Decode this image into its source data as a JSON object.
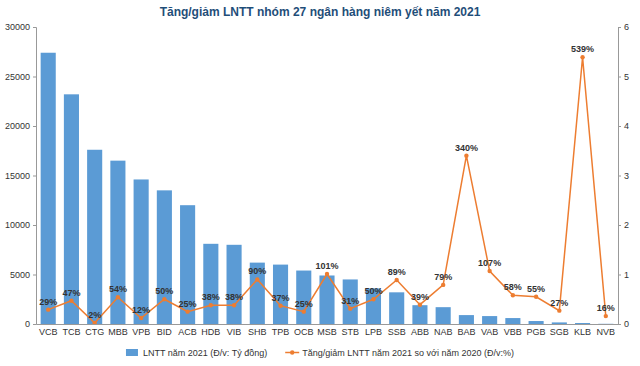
{
  "chart_data": {
    "type": "bar",
    "title": "Tăng/giảm LNTT nhóm 27 ngân hàng niêm yết năm 2021",
    "categories": [
      "VCB",
      "TCB",
      "CTG",
      "MBB",
      "VPB",
      "BID",
      "ACB",
      "HDB",
      "VIB",
      "SHB",
      "TPB",
      "OCB",
      "MSB",
      "STB",
      "LPB",
      "SSB",
      "ABB",
      "NAB",
      "BAB",
      "VAB",
      "VBB",
      "PGB",
      "SGB",
      "KLB",
      "NVB"
    ],
    "series": [
      {
        "name": "LNTT năm 2021 (Đ/v: Tỷ đồng)",
        "type": "bar",
        "color": "#5b9bd5",
        "values": [
          27400,
          23200,
          17600,
          16500,
          14600,
          13500,
          12000,
          8100,
          8000,
          6200,
          6000,
          5400,
          4900,
          4500,
          3600,
          3200,
          1900,
          1700,
          900,
          800,
          600,
          300,
          160,
          100,
          20
        ]
      },
      {
        "name": "Tăng/giảm LNTT năm 2021 so với năm 2020 (Đ/v:%)",
        "type": "line",
        "axis": "y2",
        "color": "#ed7d31",
        "marker": "circle",
        "values": [
          0.29,
          0.47,
          0.02,
          0.54,
          0.12,
          0.5,
          0.25,
          0.38,
          0.38,
          0.9,
          0.37,
          0.25,
          1.01,
          0.31,
          0.5,
          0.89,
          0.39,
          0.79,
          3.4,
          1.07,
          0.58,
          0.55,
          0.27,
          5.39,
          0.16
        ],
        "value_labels": [
          "29%",
          "47%",
          "2%",
          "54%",
          "12%",
          "50%",
          "25%",
          "38%",
          "38%",
          "90%",
          "37%",
          "25%",
          "101%",
          "31%",
          "50%",
          "89%",
          "39%",
          "79%",
          "340%",
          "107%",
          "58%",
          "55%",
          "27%",
          "539%",
          "16%"
        ]
      }
    ],
    "ylim": [
      0,
      30000
    ],
    "yticks": [
      0,
      5000,
      10000,
      15000,
      20000,
      25000,
      30000
    ],
    "y2lim": [
      0,
      6
    ],
    "y2ticks": [
      0,
      1,
      2,
      3,
      4,
      5,
      6
    ],
    "grid": false,
    "legend": "bottom",
    "data_labels": true
  }
}
